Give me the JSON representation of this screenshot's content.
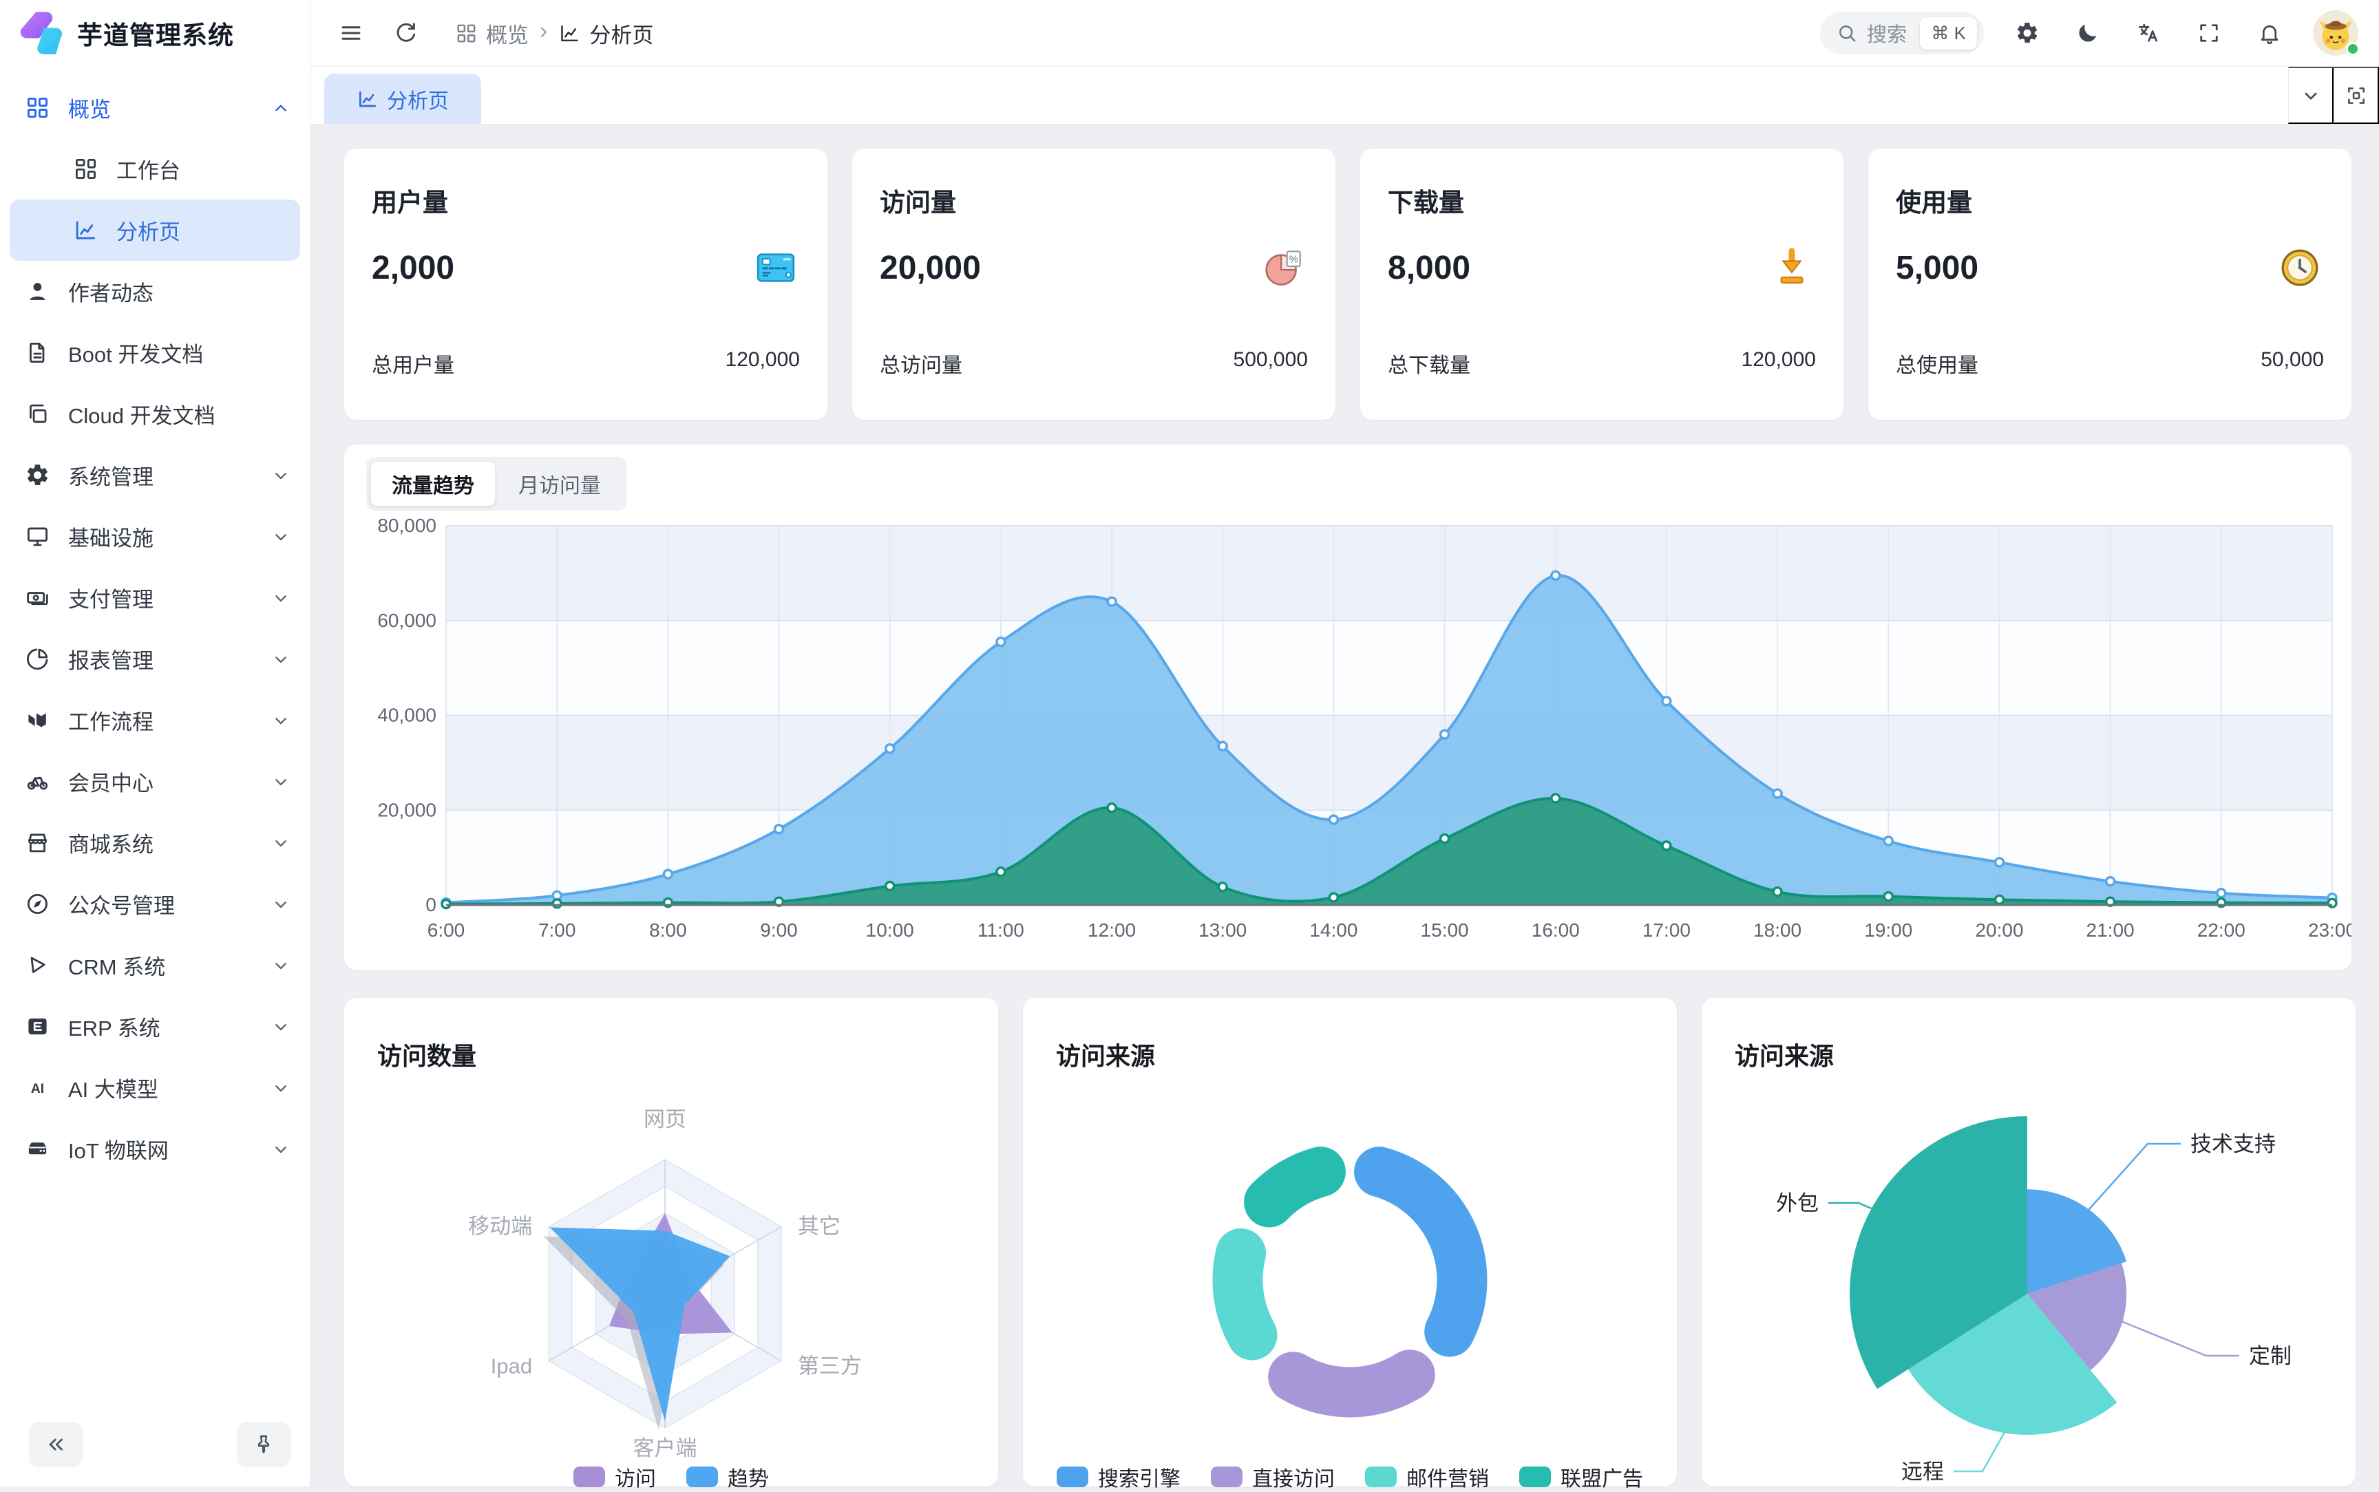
{
  "app": {
    "title": "芋道管理系统"
  },
  "sidebar": {
    "menu": [
      {
        "key": "overview",
        "label": "概览",
        "icon": "grid",
        "chevron": "up",
        "blue": true
      },
      {
        "key": "workbench",
        "label": "工作台",
        "icon": "workbench",
        "sub": true
      },
      {
        "key": "analysis",
        "label": "分析页",
        "icon": "chart",
        "sub": true,
        "selected": true
      },
      {
        "key": "author",
        "label": "作者动态",
        "icon": "user"
      },
      {
        "key": "boot-docs",
        "label": "Boot 开发文档",
        "icon": "file"
      },
      {
        "key": "cloud-docs",
        "label": "Cloud 开发文档",
        "icon": "copy"
      },
      {
        "key": "system",
        "label": "系统管理",
        "icon": "gear",
        "chevron": "down"
      },
      {
        "key": "infra",
        "label": "基础设施",
        "icon": "monitor",
        "chevron": "down"
      },
      {
        "key": "payment",
        "label": "支付管理",
        "icon": "payment",
        "chevron": "down"
      },
      {
        "key": "report",
        "label": "报表管理",
        "icon": "pie",
        "chevron": "down"
      },
      {
        "key": "workflow",
        "label": "工作流程",
        "icon": "workflow",
        "chevron": "down"
      },
      {
        "key": "member",
        "label": "会员中心",
        "icon": "bike",
        "chevron": "down"
      },
      {
        "key": "mall",
        "label": "商城系统",
        "icon": "mall",
        "chevron": "down"
      },
      {
        "key": "mp",
        "label": "公众号管理",
        "icon": "compass",
        "chevron": "down"
      },
      {
        "key": "crm",
        "label": "CRM 系统",
        "icon": "crm",
        "chevron": "down"
      },
      {
        "key": "erp",
        "label": "ERP 系统",
        "icon": "erp",
        "chevron": "down"
      },
      {
        "key": "ai",
        "label": "AI 大模型",
        "icon": "ai",
        "chevron": "down"
      },
      {
        "key": "iot",
        "label": "IoT 物联网",
        "icon": "iot",
        "chevron": "down"
      }
    ]
  },
  "header": {
    "breadcrumb": [
      {
        "label": "概览",
        "icon": "grid"
      },
      {
        "label": "分析页",
        "icon": "chart"
      }
    ],
    "search": {
      "placeholder": "搜索",
      "shortcut": "⌘ K"
    }
  },
  "tabbar": {
    "active_tab": "分析页"
  },
  "stats": [
    {
      "title": "用户量",
      "value": "2,000",
      "icon": "credit-card",
      "footer_label": "总用户量",
      "footer_value": "120,000"
    },
    {
      "title": "访问量",
      "value": "20,000",
      "icon": "pie-chart",
      "footer_label": "总访问量",
      "footer_value": "500,000"
    },
    {
      "title": "下载量",
      "value": "8,000",
      "icon": "download",
      "footer_label": "总下载量",
      "footer_value": "120,000"
    },
    {
      "title": "使用量",
      "value": "5,000",
      "icon": "clock",
      "footer_label": "总使用量",
      "footer_value": "50,000"
    }
  ],
  "chart_data": [
    {
      "id": "traffic-trend",
      "type": "area",
      "tabs": [
        "流量趋势",
        "月访问量"
      ],
      "active_tab": "流量趋势",
      "x": [
        "6:00",
        "7:00",
        "8:00",
        "9:00",
        "10:00",
        "11:00",
        "12:00",
        "13:00",
        "14:00",
        "15:00",
        "16:00",
        "17:00",
        "18:00",
        "19:00",
        "20:00",
        "21:00",
        "22:00",
        "23:00"
      ],
      "ylim": [
        0,
        80000
      ],
      "yticks": [
        "0",
        "20,000",
        "40,000",
        "60,000",
        "80,000"
      ],
      "grid": true,
      "series": [
        {
          "id": "blue",
          "line": "#57a7ea",
          "fill": "rgba(127,194,241,0.9)",
          "values": [
            500,
            2000,
            6500,
            16000,
            33000,
            55500,
            64000,
            33500,
            18000,
            36000,
            69500,
            43000,
            23500,
            13500,
            9000,
            5000,
            2500,
            1500
          ]
        },
        {
          "id": "green",
          "line": "#0e9376",
          "fill": "rgba(47,157,132,0.97)",
          "values": [
            200,
            300,
            500,
            700,
            4000,
            7000,
            20500,
            3800,
            1600,
            14000,
            22500,
            12500,
            2800,
            1800,
            1100,
            700,
            500,
            400
          ]
        }
      ]
    },
    {
      "id": "visit-count-radar",
      "type": "radar",
      "title": "访问数量",
      "indicators": [
        "网页",
        "其它",
        "第三方",
        "客户端",
        "Ipad",
        "移动端"
      ],
      "max": 100,
      "series": [
        {
          "name": "访问",
          "color": "#a78fd8",
          "values": [
            60,
            22,
            58,
            30,
            48,
            30
          ]
        },
        {
          "name": "趋势",
          "color": "#4ea7f0",
          "values": [
            47,
            56,
            17,
            95,
            27,
            99
          ]
        }
      ],
      "legend": [
        "访问",
        "趋势"
      ],
      "legend_position": "bottom"
    },
    {
      "id": "visit-source-donut",
      "type": "pie",
      "variant": "donut",
      "title": "访问来源",
      "items": [
        {
          "name": "搜索引擎",
          "value": 1048,
          "color": "#4ea2ee"
        },
        {
          "name": "直接访问",
          "value": 735,
          "color": "#a796d8"
        },
        {
          "name": "邮件营销",
          "value": 580,
          "color": "#5cd8d2"
        },
        {
          "name": "联盟广告",
          "value": 484,
          "color": "#27bcb0"
        }
      ],
      "legend_position": "bottom"
    },
    {
      "id": "visit-source-rose",
      "type": "pie",
      "variant": "rose",
      "title": "访问来源",
      "items": [
        {
          "name": "技术支持",
          "value": 20,
          "color": "#55a7ef"
        },
        {
          "name": "定制",
          "value": 19,
          "color": "#a79ad9"
        },
        {
          "name": "远程",
          "value": 27,
          "color": "#63dad6"
        },
        {
          "name": "外包",
          "value": 34,
          "color": "#2bb3a9"
        }
      ]
    }
  ]
}
